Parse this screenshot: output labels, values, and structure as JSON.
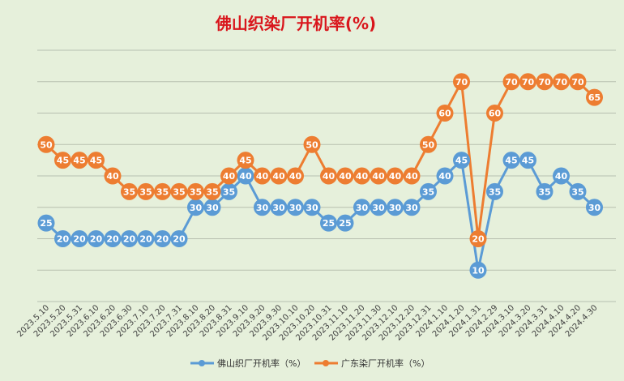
{
  "chart_data": {
    "type": "line",
    "title": "佛山织染厂开机率(%)",
    "categories": [
      "2023.5.10",
      "2023.5.20",
      "2023.5.31",
      "2023.6.10",
      "2023.6.20",
      "2023.6.30",
      "2023.7.10",
      "2023.7.20",
      "2023.7.31",
      "2023.8.10",
      "2023.8.20",
      "2023.8.31",
      "2023.9.10",
      "2023.9.20",
      "2023.9.30",
      "2023.10.10",
      "2023.10.20",
      "2023.10.31",
      "2023.11.10",
      "2023.11.20",
      "2023.11.30",
      "2023.12.10",
      "2023.12.20",
      "2023.12.31",
      "2024.1.10",
      "2024.1.20",
      "2024.1.31",
      "2024.2.29",
      "2024.3.10",
      "2024.3.20",
      "2024.3.31",
      "2024.4.10",
      "2024.4.20",
      "2024.4.30"
    ],
    "series": [
      {
        "name": "佛山织厂开机率（%）",
        "color": "#5b9bd5",
        "values": [
          25,
          20,
          20,
          20,
          20,
          20,
          20,
          20,
          20,
          30,
          30,
          35,
          40,
          30,
          30,
          30,
          30,
          25,
          25,
          30,
          30,
          30,
          30,
          35,
          40,
          45,
          10,
          35,
          45,
          45,
          35,
          40,
          35,
          30
        ]
      },
      {
        "name": "广东染厂开机率（%）",
        "color": "#ed7d31",
        "values": [
          50,
          45,
          45,
          45,
          40,
          35,
          35,
          35,
          35,
          35,
          35,
          40,
          45,
          40,
          40,
          40,
          50,
          40,
          40,
          40,
          40,
          40,
          40,
          50,
          60,
          70,
          20,
          60,
          70,
          70,
          70,
          70,
          70,
          65
        ]
      }
    ],
    "ylim": [
      0,
      80
    ],
    "grid": true,
    "legend_position": "bottom"
  }
}
